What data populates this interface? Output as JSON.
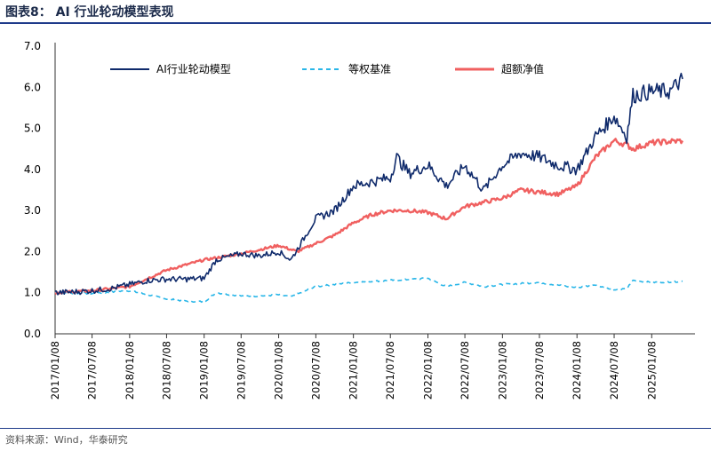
{
  "header": {
    "title": "图表8：  AI 行业轮动模型表现"
  },
  "footer": {
    "source": "资料来源：Wind，华泰研究"
  },
  "colors": {
    "accent": "#1e3a8a",
    "model": "#0f2a6b",
    "benchmark": "#29b6e8",
    "excess": "#f06060"
  },
  "chart_data": {
    "type": "line",
    "ylim": [
      0,
      7
    ],
    "yticks": [
      "0.0",
      "1.0",
      "2.0",
      "3.0",
      "4.0",
      "5.0",
      "6.0",
      "7.0"
    ],
    "xticks": [
      "2017/01/08",
      "2017/07/08",
      "2018/01/08",
      "2018/07/08",
      "2019/01/08",
      "2019/07/08",
      "2020/01/08",
      "2020/07/08",
      "2021/01/08",
      "2021/07/08",
      "2022/01/08",
      "2022/07/08",
      "2023/01/08",
      "2023/07/08",
      "2024/01/08",
      "2024/07/08",
      "2025/01/08"
    ],
    "legend_position": "top",
    "grid": false,
    "series": [
      {
        "name": "AI行业轮动模型",
        "style": "solid",
        "points": [
          [
            "2017/01/08",
            1.0
          ],
          [
            "2017/04/08",
            1.02
          ],
          [
            "2017/07/08",
            1.05
          ],
          [
            "2017/10/08",
            1.1
          ],
          [
            "2018/01/08",
            1.2
          ],
          [
            "2018/04/08",
            1.3
          ],
          [
            "2018/07/08",
            1.33
          ],
          [
            "2018/10/08",
            1.33
          ],
          [
            "2019/01/08",
            1.35
          ],
          [
            "2019/03/08",
            1.8
          ],
          [
            "2019/07/08",
            1.95
          ],
          [
            "2019/10/08",
            1.9
          ],
          [
            "2020/01/08",
            2.0
          ],
          [
            "2020/03/08",
            1.8
          ],
          [
            "2020/07/08",
            2.8
          ],
          [
            "2020/10/08",
            3.0
          ],
          [
            "2021/01/08",
            3.6
          ],
          [
            "2021/04/08",
            3.7
          ],
          [
            "2021/07/08",
            3.8
          ],
          [
            "2021/08/08",
            4.3
          ],
          [
            "2021/10/08",
            3.9
          ],
          [
            "2022/01/08",
            4.1
          ],
          [
            "2022/04/08",
            3.6
          ],
          [
            "2022/07/08",
            4.1
          ],
          [
            "2022/10/08",
            3.5
          ],
          [
            "2023/01/08",
            4.1
          ],
          [
            "2023/04/08",
            4.4
          ],
          [
            "2023/07/08",
            4.3
          ],
          [
            "2023/10/08",
            4.1
          ],
          [
            "2024/01/08",
            4.0
          ],
          [
            "2024/04/08",
            4.8
          ],
          [
            "2024/07/08",
            5.3
          ],
          [
            "2024/09/08",
            4.8
          ],
          [
            "2024/10/08",
            5.8
          ],
          [
            "2025/01/08",
            5.9
          ],
          [
            "2025/04/08",
            5.9
          ],
          [
            "2025/06/08",
            6.2
          ]
        ]
      },
      {
        "name": "等权基准",
        "style": "dashed",
        "points": [
          [
            "2017/01/08",
            1.0
          ],
          [
            "2017/07/08",
            0.98
          ],
          [
            "2018/01/08",
            1.05
          ],
          [
            "2018/04/08",
            0.95
          ],
          [
            "2018/07/08",
            0.85
          ],
          [
            "2018/10/08",
            0.8
          ],
          [
            "2019/01/08",
            0.78
          ],
          [
            "2019/03/08",
            1.0
          ],
          [
            "2019/07/08",
            0.92
          ],
          [
            "2019/10/08",
            0.92
          ],
          [
            "2020/01/08",
            0.95
          ],
          [
            "2020/03/08",
            0.9
          ],
          [
            "2020/07/08",
            1.15
          ],
          [
            "2020/10/08",
            1.2
          ],
          [
            "2021/01/08",
            1.25
          ],
          [
            "2021/07/08",
            1.3
          ],
          [
            "2022/01/08",
            1.35
          ],
          [
            "2022/04/08",
            1.15
          ],
          [
            "2022/07/08",
            1.25
          ],
          [
            "2022/10/08",
            1.15
          ],
          [
            "2023/01/08",
            1.2
          ],
          [
            "2023/07/08",
            1.25
          ],
          [
            "2024/01/08",
            1.12
          ],
          [
            "2024/04/08",
            1.2
          ],
          [
            "2024/07/08",
            1.05
          ],
          [
            "2024/09/08",
            1.1
          ],
          [
            "2024/10/08",
            1.3
          ],
          [
            "2025/01/08",
            1.25
          ],
          [
            "2025/06/08",
            1.28
          ]
        ]
      },
      {
        "name": "超额净值",
        "style": "solid-thick",
        "points": [
          [
            "2017/01/08",
            1.0
          ],
          [
            "2017/07/08",
            1.05
          ],
          [
            "2018/01/08",
            1.15
          ],
          [
            "2018/04/08",
            1.35
          ],
          [
            "2018/07/08",
            1.55
          ],
          [
            "2019/01/08",
            1.8
          ],
          [
            "2019/07/08",
            1.95
          ],
          [
            "2019/10/08",
            2.05
          ],
          [
            "2020/01/08",
            2.15
          ],
          [
            "2020/04/08",
            2.0
          ],
          [
            "2020/07/08",
            2.2
          ],
          [
            "2020/10/08",
            2.4
          ],
          [
            "2021/01/08",
            2.7
          ],
          [
            "2021/04/08",
            2.9
          ],
          [
            "2021/07/08",
            3.0
          ],
          [
            "2021/10/08",
            3.0
          ],
          [
            "2022/01/08",
            2.95
          ],
          [
            "2022/04/08",
            2.8
          ],
          [
            "2022/07/08",
            3.1
          ],
          [
            "2022/10/08",
            3.2
          ],
          [
            "2023/01/08",
            3.3
          ],
          [
            "2023/04/08",
            3.5
          ],
          [
            "2023/07/08",
            3.45
          ],
          [
            "2023/10/08",
            3.4
          ],
          [
            "2024/01/08",
            3.6
          ],
          [
            "2024/04/08",
            4.3
          ],
          [
            "2024/07/08",
            4.7
          ],
          [
            "2024/09/08",
            4.6
          ],
          [
            "2024/10/08",
            4.5
          ],
          [
            "2025/01/08",
            4.65
          ],
          [
            "2025/06/08",
            4.7
          ]
        ]
      }
    ]
  }
}
